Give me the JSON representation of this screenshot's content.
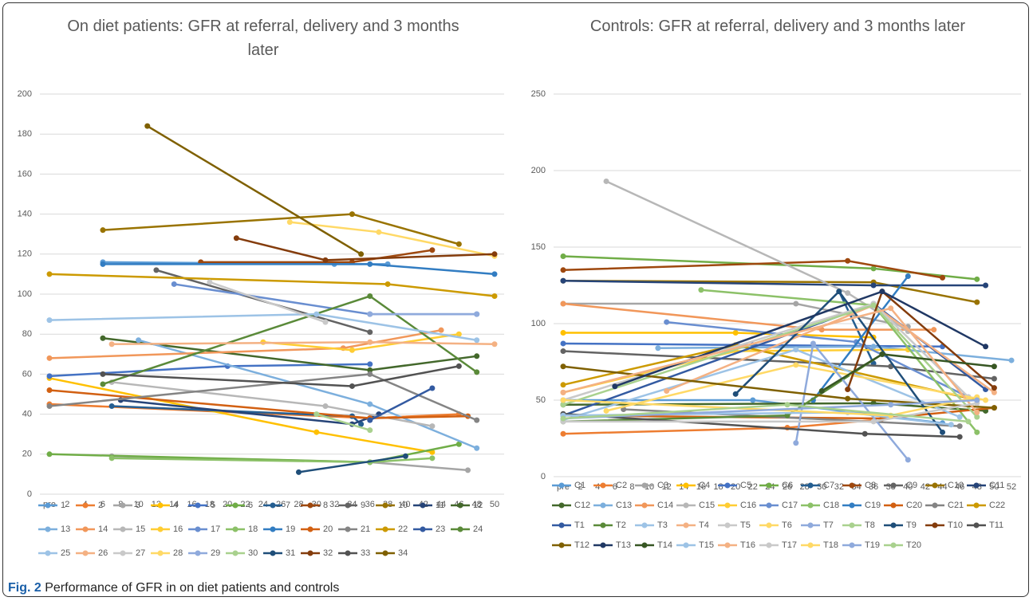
{
  "chart_data": [
    {
      "type": "line",
      "title": "On diet patients:  GFR at referral, delivery and 3 months later",
      "xlim": [
        0,
        50
      ],
      "xticks": [
        {
          "value": 0,
          "label": "pre"
        },
        2,
        4,
        6,
        8,
        10,
        12,
        14,
        16,
        18,
        20,
        22,
        24,
        26,
        28,
        30,
        32,
        34,
        36,
        38,
        40,
        42,
        44,
        46,
        48,
        50
      ],
      "ylim": [
        0,
        200
      ],
      "yticks": [
        0,
        20,
        40,
        60,
        80,
        100,
        120,
        140,
        160,
        180,
        200
      ],
      "grid": true,
      "series": [
        {
          "name": "1",
          "color": "#5b9bd5",
          "x": [
            6,
            32,
            38
          ],
          "values": [
            116,
            115,
            115
          ]
        },
        {
          "name": "2",
          "color": "#ed7d31",
          "x": [
            0,
            36,
            46
          ],
          "values": [
            45,
            38,
            40
          ]
        },
        {
          "name": "3",
          "color": "#a5a5a5",
          "x": [
            7,
            36,
            47
          ],
          "values": [
            19,
            16,
            12
          ]
        },
        {
          "name": "4",
          "color": "#ffc000",
          "x": [
            0,
            30,
            43
          ],
          "values": [
            58,
            31,
            21
          ]
        },
        {
          "name": "5",
          "color": "#4472c4",
          "x": [
            0,
            20,
            36
          ],
          "values": [
            59,
            64,
            65
          ]
        },
        {
          "name": "6",
          "color": "#70ad47",
          "x": [
            0,
            36,
            46
          ],
          "values": [
            20,
            16,
            25
          ]
        },
        {
          "name": "7",
          "color": "#255e91",
          "x": [
            7,
            34,
            35
          ],
          "values": [
            44,
            39,
            35
          ]
        },
        {
          "name": "8",
          "color": "#9e480e",
          "x": [
            17,
            34,
            43
          ],
          "values": [
            116,
            116,
            122
          ]
        },
        {
          "name": "9",
          "color": "#636363",
          "x": [
            12,
            36
          ],
          "values": [
            112,
            81
          ]
        },
        {
          "name": "10",
          "color": "#997300",
          "x": [
            6,
            34,
            46
          ],
          "values": [
            132,
            140,
            125
          ]
        },
        {
          "name": "11",
          "color": "#264478",
          "x": [
            8,
            34,
            37
          ],
          "values": [
            47,
            35,
            40
          ]
        },
        {
          "name": "12",
          "color": "#43682b",
          "x": [
            6,
            36,
            48
          ],
          "values": [
            78,
            62,
            69
          ]
        },
        {
          "name": "13",
          "color": "#7cafdd",
          "x": [
            10,
            36,
            48
          ],
          "values": [
            77,
            45,
            23
          ]
        },
        {
          "name": "14",
          "color": "#f1975a",
          "x": [
            0,
            33,
            44
          ],
          "values": [
            68,
            73,
            82
          ]
        },
        {
          "name": "15",
          "color": "#b7b7b7",
          "x": [
            7,
            31,
            43
          ],
          "values": [
            56,
            44,
            34
          ]
        },
        {
          "name": "16",
          "color": "#ffcd33",
          "x": [
            24,
            34,
            46
          ],
          "values": [
            76,
            72,
            80
          ]
        },
        {
          "name": "17",
          "color": "#698ed0",
          "x": [
            14,
            36,
            48
          ],
          "values": [
            105,
            90,
            90
          ]
        },
        {
          "name": "18",
          "color": "#8cc168",
          "x": [
            7,
            36,
            43
          ],
          "values": [
            18,
            16,
            18
          ]
        },
        {
          "name": "19",
          "color": "#327dc2",
          "x": [
            6,
            36,
            50
          ],
          "values": [
            115,
            115,
            110
          ]
        },
        {
          "name": "20",
          "color": "#d26012",
          "x": [
            0,
            36,
            47
          ],
          "values": [
            52,
            38,
            39
          ]
        },
        {
          "name": "21",
          "color": "#848484",
          "x": [
            0,
            36,
            48
          ],
          "values": [
            44,
            60,
            37
          ]
        },
        {
          "name": "22",
          "color": "#cc9a00",
          "x": [
            0,
            38,
            50
          ],
          "values": [
            110,
            105,
            99
          ]
        },
        {
          "name": "23",
          "color": "#335aa1",
          "x": [
            36,
            43
          ],
          "values": [
            37,
            53
          ]
        },
        {
          "name": "24",
          "color": "#5a8a39",
          "x": [
            6,
            36,
            48
          ],
          "values": [
            55,
            99,
            61
          ]
        },
        {
          "name": "25",
          "color": "#9dc3e6",
          "x": [
            0,
            30,
            48
          ],
          "values": [
            87,
            90,
            77
          ]
        },
        {
          "name": "26",
          "color": "#f4b183",
          "x": [
            7,
            36,
            50
          ],
          "values": [
            75,
            76,
            75
          ]
        },
        {
          "name": "27",
          "color": "#c9c9c9",
          "x": [
            18,
            31
          ],
          "values": [
            106,
            86
          ]
        },
        {
          "name": "28",
          "color": "#ffd966",
          "x": [
            27,
            37,
            50
          ],
          "values": [
            136,
            131,
            119
          ]
        },
        {
          "name": "29",
          "color": "#8faadc",
          "x": [
            36,
            48
          ],
          "values": [
            90,
            90
          ]
        },
        {
          "name": "30",
          "color": "#a9d18e",
          "x": [
            30,
            36
          ],
          "values": [
            40,
            32
          ]
        },
        {
          "name": "31",
          "color": "#1f4e79",
          "x": [
            28,
            40
          ],
          "values": [
            11,
            19
          ]
        },
        {
          "name": "32",
          "color": "#843c0c",
          "x": [
            21,
            31,
            50
          ],
          "values": [
            128,
            117,
            120
          ]
        },
        {
          "name": "33",
          "color": "#525252",
          "x": [
            6,
            34,
            46
          ],
          "values": [
            60,
            54,
            64
          ]
        },
        {
          "name": "34",
          "color": "#7f6000",
          "x": [
            11,
            35
          ],
          "values": [
            184,
            120
          ]
        }
      ]
    },
    {
      "type": "line",
      "title": "Controls:  GFR at referral, delivery and 3 months later",
      "xlim": [
        0,
        52
      ],
      "xticks": [
        {
          "value": 0,
          "label": "pre"
        },
        2,
        4,
        6,
        8,
        10,
        12,
        14,
        16,
        18,
        20,
        22,
        24,
        26,
        28,
        30,
        32,
        34,
        36,
        38,
        40,
        42,
        44,
        46,
        48,
        50,
        52
      ],
      "ylim": [
        0,
        250
      ],
      "yticks": [
        0,
        50,
        100,
        150,
        200,
        250
      ],
      "grid": true,
      "series": [
        {
          "name": "C1",
          "color": "#5b9bd5",
          "x": [
            0,
            22,
            44
          ],
          "values": [
            50,
            50,
            35
          ]
        },
        {
          "name": "C2",
          "color": "#ed7d31",
          "x": [
            0,
            26,
            36
          ],
          "values": [
            28,
            32,
            37
          ]
        },
        {
          "name": "C3",
          "color": "#a5a5a5",
          "x": [
            0,
            27,
            40
          ],
          "values": [
            113,
            113,
            98
          ]
        },
        {
          "name": "C4",
          "color": "#ffc000",
          "x": [
            0,
            20,
            36
          ],
          "values": [
            94,
            94,
            91
          ]
        },
        {
          "name": "C5",
          "color": "#4472c4",
          "x": [
            0,
            22,
            44
          ],
          "values": [
            87,
            86,
            85
          ]
        },
        {
          "name": "C6",
          "color": "#70ad47",
          "x": [
            0,
            36,
            48
          ],
          "values": [
            144,
            136,
            129
          ]
        },
        {
          "name": "C7",
          "color": "#255e91",
          "x": [
            32,
            36
          ],
          "values": [
            121,
            74
          ]
        },
        {
          "name": "C8",
          "color": "#9e480e",
          "x": [
            0,
            33,
            44
          ],
          "values": [
            135,
            141,
            130
          ]
        },
        {
          "name": "C9",
          "color": "#636363",
          "x": [
            0,
            38,
            50
          ],
          "values": [
            82,
            72,
            64
          ]
        },
        {
          "name": "C10",
          "color": "#997300",
          "x": [
            0,
            36,
            48
          ],
          "values": [
            128,
            127,
            114
          ]
        },
        {
          "name": "C11",
          "color": "#264478",
          "x": [
            0,
            36,
            49
          ],
          "values": [
            128,
            125,
            125
          ]
        },
        {
          "name": "C12",
          "color": "#43682b",
          "x": [
            0,
            36,
            49
          ],
          "values": [
            47,
            48,
            43
          ]
        },
        {
          "name": "C13",
          "color": "#7cafdd",
          "x": [
            11,
            36,
            52
          ],
          "values": [
            84,
            85,
            76
          ]
        },
        {
          "name": "C14",
          "color": "#f1975a",
          "x": [
            0,
            30,
            43
          ],
          "values": [
            113,
            96,
            96
          ]
        },
        {
          "name": "C15",
          "color": "#b7b7b7",
          "x": [
            5,
            33,
            40
          ],
          "values": [
            193,
            120,
            95
          ]
        },
        {
          "name": "C16",
          "color": "#ffcd33",
          "x": [
            0,
            20,
            40
          ],
          "values": [
            55,
            82,
            83
          ]
        },
        {
          "name": "C17",
          "color": "#698ed0",
          "x": [
            12,
            34,
            47
          ],
          "values": [
            101,
            88,
            52
          ]
        },
        {
          "name": "C18",
          "color": "#8cc168",
          "x": [
            16,
            36,
            48
          ],
          "values": [
            122,
            112,
            29
          ]
        },
        {
          "name": "C19",
          "color": "#327dc2",
          "x": [
            29,
            40
          ],
          "values": [
            50,
            131
          ]
        },
        {
          "name": "C20",
          "color": "#d26012",
          "x": [
            0,
            37,
            50
          ],
          "values": [
            40,
            38,
            45
          ]
        },
        {
          "name": "C21",
          "color": "#848484",
          "x": [
            7,
            46
          ],
          "values": [
            44,
            33
          ]
        },
        {
          "name": "C22",
          "color": "#cc9a00",
          "x": [
            0,
            20,
            48
          ],
          "values": [
            60,
            86,
            50
          ]
        },
        {
          "name": "T1",
          "color": "#335aa1",
          "x": [
            0,
            36,
            49
          ],
          "values": [
            40,
            113,
            57
          ]
        },
        {
          "name": "T2",
          "color": "#5a8a39",
          "x": [
            0,
            26,
            37
          ],
          "values": [
            36,
            40,
            80
          ]
        },
        {
          "name": "T3",
          "color": "#9dc3e6",
          "x": [
            0,
            27,
            46
          ],
          "values": [
            37,
            83,
            39
          ]
        },
        {
          "name": "T4",
          "color": "#f4b183",
          "x": [
            12,
            36,
            50
          ],
          "values": [
            56,
            112,
            55
          ]
        },
        {
          "name": "T5",
          "color": "#c9c9c9",
          "x": [
            0,
            36,
            47
          ],
          "values": [
            50,
            113,
            52
          ]
        },
        {
          "name": "T6",
          "color": "#ffd966",
          "x": [
            5,
            27,
            49
          ],
          "values": [
            43,
            73,
            50
          ]
        },
        {
          "name": "T7",
          "color": "#8faadc",
          "x": [
            27,
            29,
            40
          ],
          "values": [
            22,
            87,
            11
          ]
        },
        {
          "name": "T8",
          "color": "#a9d18e",
          "x": [
            0,
            36,
            48
          ],
          "values": [
            47,
            112,
            39
          ]
        },
        {
          "name": "T9",
          "color": "#1f4e79",
          "x": [
            20,
            32,
            44
          ],
          "values": [
            54,
            121,
            29
          ]
        },
        {
          "name": "T10",
          "color": "#843c0c",
          "x": [
            33,
            37,
            50
          ],
          "values": [
            57,
            121,
            58
          ]
        },
        {
          "name": "T11",
          "color": "#525252",
          "x": [
            0,
            35,
            46
          ],
          "values": [
            41,
            28,
            26
          ]
        },
        {
          "name": "T12",
          "color": "#7f6000",
          "x": [
            0,
            33,
            50
          ],
          "values": [
            72,
            51,
            45
          ]
        },
        {
          "name": "T13",
          "color": "#203864",
          "x": [
            6,
            37,
            49
          ],
          "values": [
            59,
            121,
            85
          ]
        },
        {
          "name": "T14",
          "color": "#375623",
          "x": [
            30,
            37,
            50
          ],
          "values": [
            56,
            80,
            72
          ]
        },
        {
          "name": "T15",
          "color": "#9dc3e6",
          "x": [
            0,
            33,
            45
          ],
          "values": [
            40,
            42,
            34
          ]
        },
        {
          "name": "T16",
          "color": "#f4b183",
          "x": [
            0,
            38,
            48
          ],
          "values": [
            55,
            110,
            42
          ]
        },
        {
          "name": "T17",
          "color": "#c9c9c9",
          "x": [
            0,
            36,
            48
          ],
          "values": [
            36,
            36,
            48
          ]
        },
        {
          "name": "T18",
          "color": "#ffd966",
          "x": [
            0,
            38,
            48
          ],
          "values": [
            50,
            40,
            52
          ]
        },
        {
          "name": "T19",
          "color": "#8faadc",
          "x": [
            0,
            38,
            48
          ],
          "values": [
            38,
            47,
            50
          ]
        },
        {
          "name": "T20",
          "color": "#a9d18e",
          "x": [
            0,
            26,
            47
          ],
          "values": [
            38,
            47,
            36
          ]
        }
      ]
    }
  ],
  "caption": {
    "label": "Fig. 2",
    "text": "Performance of GFR in on diet patients and controls"
  }
}
